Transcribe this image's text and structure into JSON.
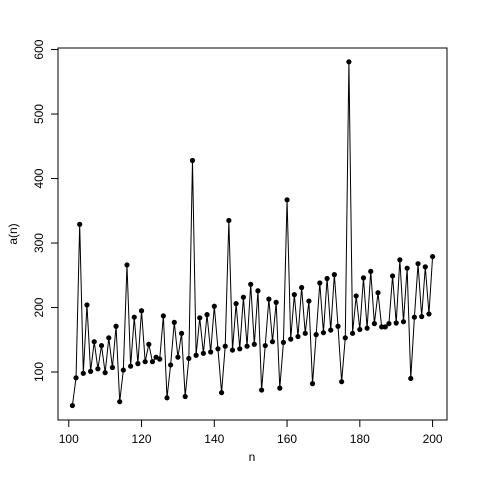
{
  "chart_data": {
    "type": "line",
    "x_label": "n",
    "y_label": "a(n)",
    "color": "#000000",
    "markers": true,
    "x": [
      101,
      102,
      103,
      104,
      105,
      106,
      107,
      108,
      109,
      110,
      111,
      112,
      113,
      114,
      115,
      116,
      117,
      118,
      119,
      120,
      121,
      122,
      123,
      124,
      125,
      126,
      127,
      128,
      129,
      130,
      131,
      132,
      133,
      134,
      135,
      136,
      137,
      138,
      139,
      140,
      141,
      142,
      143,
      144,
      145,
      146,
      147,
      148,
      149,
      150,
      151,
      152,
      153,
      154,
      155,
      156,
      157,
      158,
      159,
      160,
      161,
      162,
      163,
      164,
      165,
      166,
      167,
      168,
      169,
      170,
      171,
      172,
      173,
      174,
      175,
      176,
      177,
      178,
      179,
      180,
      181,
      182,
      183,
      184,
      185,
      186,
      187,
      188,
      189,
      190,
      191,
      192,
      193,
      194,
      195,
      196,
      197,
      198,
      199,
      200
    ],
    "values": [
      48,
      91,
      329,
      98,
      204,
      101,
      147,
      105,
      141,
      99,
      153,
      107,
      171,
      54,
      103,
      266,
      109,
      185,
      113,
      195,
      116,
      143,
      116,
      123,
      120,
      187,
      60,
      111,
      177,
      123,
      160,
      62,
      121,
      428,
      126,
      184,
      129,
      189,
      131,
      202,
      136,
      68,
      140,
      335,
      134,
      206,
      136,
      216,
      140,
      236,
      143,
      226,
      72,
      141,
      213,
      147,
      208,
      75,
      146,
      367,
      151,
      220,
      155,
      231,
      160,
      210,
      82,
      158,
      238,
      161,
      245,
      165,
      251,
      171,
      85,
      153,
      581,
      160,
      218,
      166,
      246,
      168,
      256,
      175,
      223,
      170,
      170,
      175,
      249,
      176,
      274,
      178,
      261,
      90,
      185,
      268,
      186,
      263,
      190,
      279
    ],
    "xlim": [
      97.04,
      203.96
    ],
    "ylim": [
      25.6,
      602.4
    ],
    "xticks": [
      100,
      120,
      140,
      160,
      180,
      200
    ],
    "yticks": [
      100,
      200,
      300,
      400,
      500,
      600
    ]
  }
}
